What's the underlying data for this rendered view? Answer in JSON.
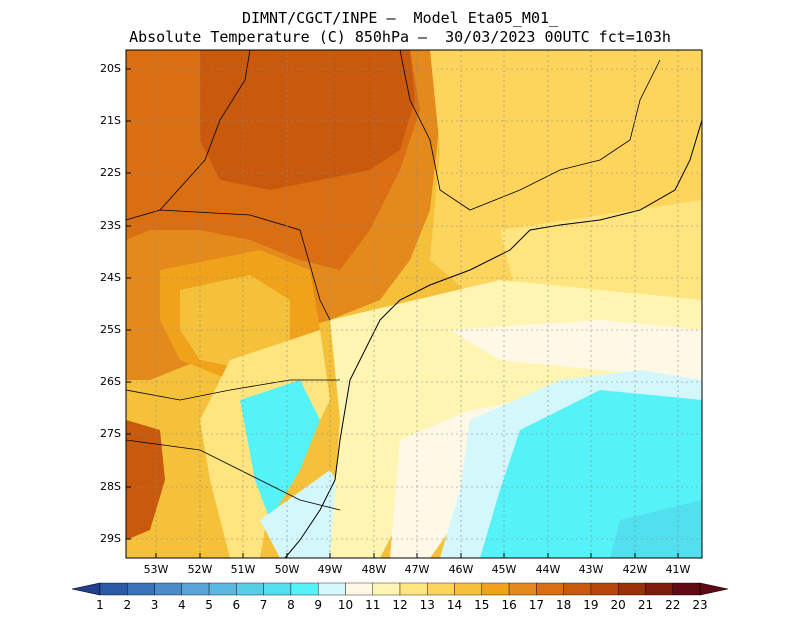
{
  "title_line1": "DIMNT/CGCT/INPE –  Model Eta05_M01_",
  "title_line2": "Absolute Temperature (C) 850hPa –  30/03/2023 00UTC fct=103h",
  "lat_labels": [
    "20S",
    "21S",
    "22S",
    "23S",
    "24S",
    "25S",
    "26S",
    "27S",
    "28S",
    "29S"
  ],
  "lon_labels": [
    "53W",
    "52W",
    "51W",
    "50W",
    "49W",
    "48W",
    "47W",
    "46W",
    "45W",
    "44W",
    "43W",
    "42W",
    "41W"
  ],
  "colorbar": {
    "labels": [
      "1",
      "2",
      "3",
      "4",
      "5",
      "6",
      "7",
      "8",
      "9",
      "10",
      "11",
      "12",
      "13",
      "14",
      "15",
      "16",
      "17",
      "18",
      "19",
      "20",
      "21",
      "22",
      "23"
    ],
    "colors": [
      "#1f3f8f",
      "#2a5aa6",
      "#3a74b8",
      "#4a8cc8",
      "#5aa3d6",
      "#5ab9de",
      "#55cfe6",
      "#52e0ee",
      "#55f2f8",
      "#d3f7fb",
      "#fff8e6",
      "#fff5b3",
      "#ffe57f",
      "#fdd55c",
      "#f5c13a",
      "#f0a21a",
      "#e48a1d",
      "#da6e12",
      "#c95a0d",
      "#b7460a",
      "#9c300a",
      "#7c1d0e",
      "#5f0a14"
    ]
  }
}
